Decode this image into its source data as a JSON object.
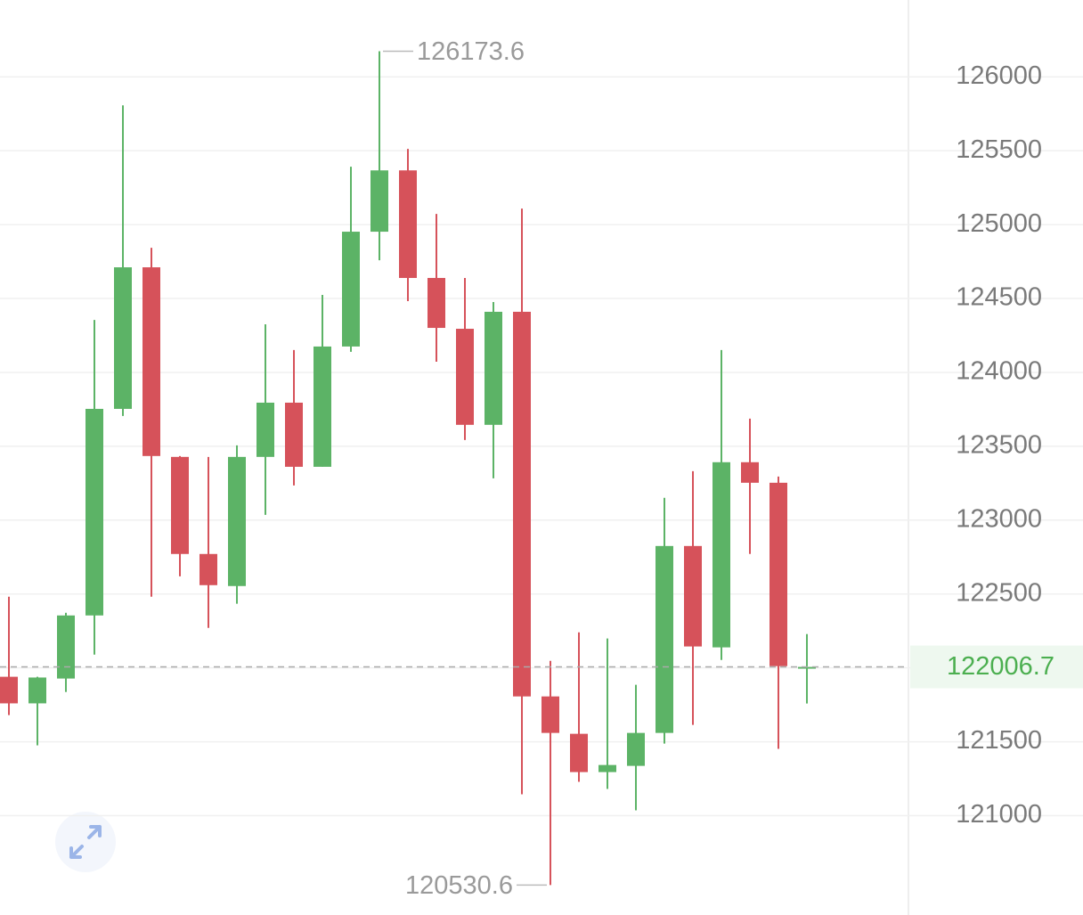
{
  "chart_data": {
    "type": "candlestick",
    "up_color": "#5cb366",
    "down_color": "#d6525a",
    "open": [
      121940,
      121760,
      121928,
      122355,
      123753,
      124711,
      123428,
      122771,
      122554,
      123428,
      123795,
      123361,
      124175,
      124952,
      125367,
      124639,
      124295,
      123645,
      124410,
      121807,
      121554,
      121295,
      121337,
      121560,
      122825,
      122139,
      123392,
      123253,
      122000
    ],
    "close": [
      121760,
      121935,
      122355,
      123753,
      124711,
      123434,
      122771,
      122560,
      123428,
      123795,
      123361,
      124175,
      124952,
      125367,
      124639,
      124301,
      123645,
      124410,
      121807,
      121560,
      121295,
      121343,
      121560,
      122825,
      122145,
      123392,
      123253,
      122012,
      122006.7
    ],
    "high": [
      122482,
      121940,
      122373,
      124355,
      125807,
      124843,
      123434,
      123428,
      123506,
      124325,
      124151,
      124524,
      125392,
      126173.6,
      125512,
      125072,
      124639,
      124476,
      125108,
      122048,
      122241,
      122199,
      121886,
      123151,
      123331,
      124151,
      123687,
      123295,
      122229
    ],
    "low": [
      121681,
      121476,
      121837,
      122090,
      123705,
      122482,
      122620,
      122271,
      122434,
      123036,
      123235,
      123361,
      124139,
      124759,
      124482,
      124072,
      123542,
      123283,
      121145,
      120530.6,
      121229,
      121181,
      121036,
      121488,
      121614,
      122054,
      122771,
      121452,
      121759
    ],
    "last_price": 122006.7,
    "ylim": [
      120370,
      126520
    ],
    "yticks": [
      121000,
      121500,
      122000,
      122500,
      123000,
      123500,
      124000,
      124500,
      125000,
      125500,
      126000
    ],
    "grid": true
  }
}
